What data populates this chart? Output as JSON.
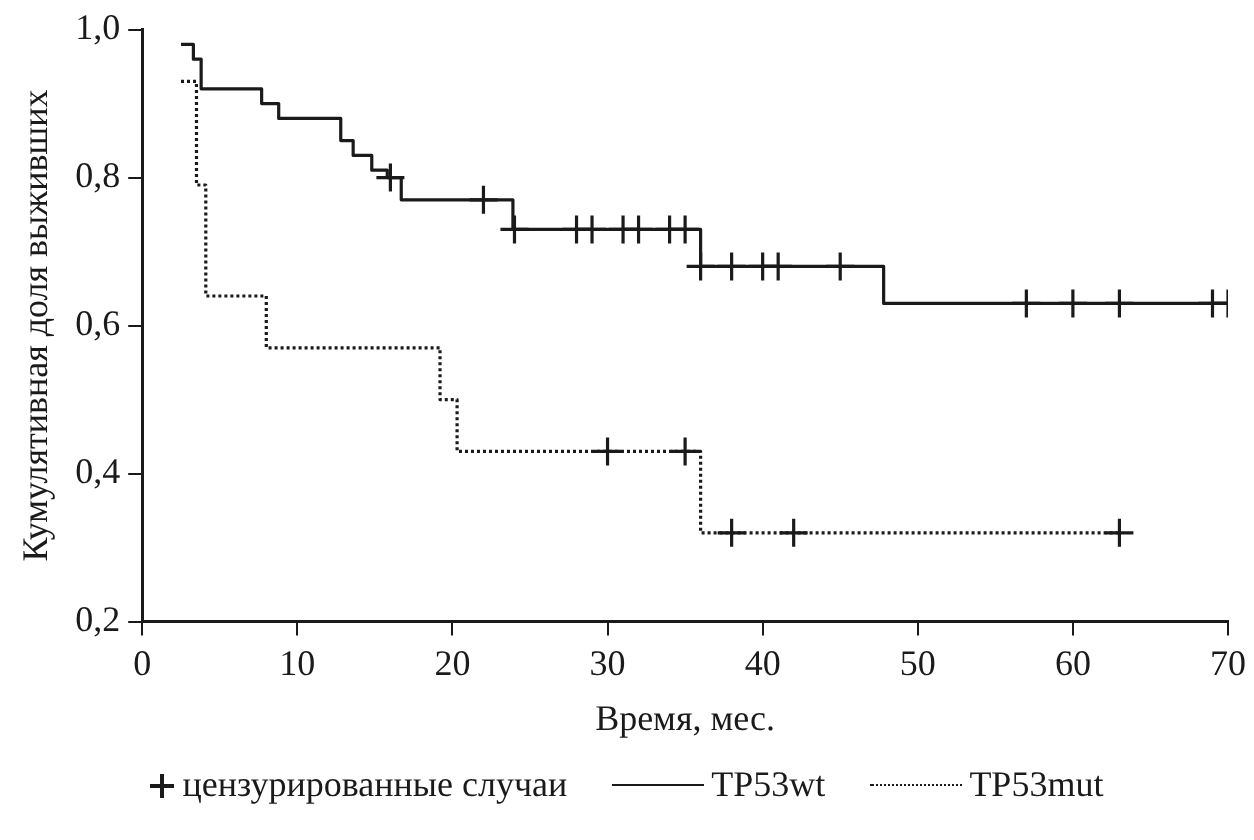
{
  "chart_data": {
    "type": "step",
    "xlabel": "Время, мес.",
    "ylabel": "Кумулятивная доля выживших",
    "xlim": [
      0,
      70
    ],
    "xticks": [
      0,
      10,
      20,
      30,
      40,
      50,
      60,
      70
    ],
    "ylim": [
      0.2,
      1.0
    ],
    "yticks": [
      {
        "value": 0.2,
        "label": "0,2"
      },
      {
        "value": 0.4,
        "label": "0,4"
      },
      {
        "value": 0.6,
        "label": "0,6"
      },
      {
        "value": 0.8,
        "label": "0,8"
      },
      {
        "value": 1.0,
        "label": "1,0"
      }
    ],
    "grid": false,
    "legend": "bottom",
    "series": [
      {
        "name": "цензурированные случаи",
        "type": "scatter",
        "marker": "cross",
        "color": "#1a1a1a",
        "x": [
          16,
          22,
          24,
          28,
          29,
          31,
          32,
          34,
          35,
          36,
          38,
          40,
          41,
          45,
          57,
          60,
          63,
          69,
          70,
          30,
          35,
          38,
          42,
          63
        ],
        "values": [
          0.8,
          0.77,
          0.73,
          0.73,
          0.73,
          0.73,
          0.73,
          0.73,
          0.73,
          0.68,
          0.68,
          0.68,
          0.68,
          0.68,
          0.63,
          0.63,
          0.63,
          0.63,
          0.63,
          0.43,
          0.43,
          0.32,
          0.32,
          0.32
        ]
      },
      {
        "name": "TP53wt",
        "line_style": "solid",
        "color": "#1a1a1a",
        "x": [
          2.5,
          3.3,
          3.8,
          7.7,
          8.8,
          12.8,
          13.6,
          14.8,
          15.8,
          16.7,
          23.9,
          36,
          47.8,
          70
        ],
        "values": [
          0.98,
          0.96,
          0.92,
          0.9,
          0.88,
          0.85,
          0.83,
          0.81,
          0.8,
          0.77,
          0.73,
          0.68,
          0.63,
          0.63
        ]
      },
      {
        "name": "TP53mut",
        "line_style": "dotted",
        "color": "#1a1a1a",
        "x": [
          2.5,
          3.5,
          4.1,
          8,
          19.2,
          20.3,
          36,
          63
        ],
        "values": [
          0.93,
          0.79,
          0.64,
          0.57,
          0.5,
          0.43,
          0.32,
          0.32
        ]
      }
    ]
  }
}
